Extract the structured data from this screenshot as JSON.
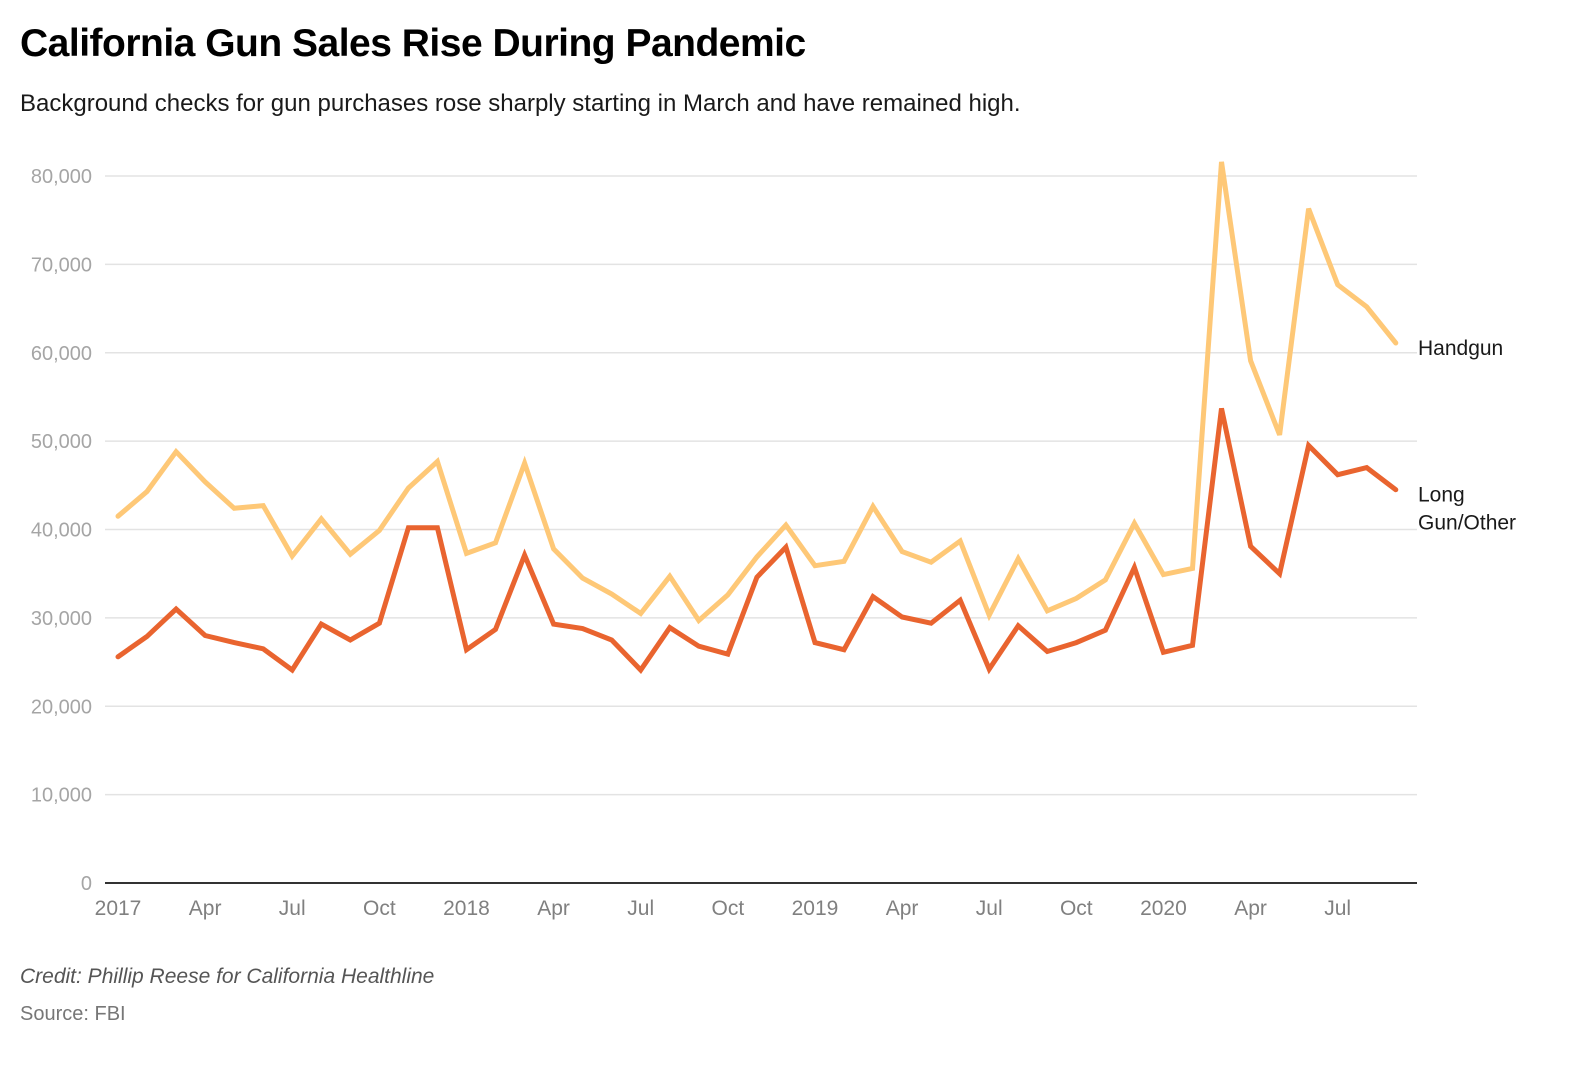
{
  "header": {
    "title": "California Gun Sales Rise During Pandemic",
    "subtitle": "Background checks for gun purchases rose sharply starting in March and have remained high."
  },
  "footer": {
    "credit": "Credit: Phillip Reese for California Healthline",
    "source": "Source: FBI"
  },
  "chart_data": {
    "type": "line",
    "title": "California Gun Sales Rise During Pandemic",
    "subtitle": "Background checks for gun purchases rose sharply starting in March and have remained high.",
    "xlabel": "",
    "ylabel": "",
    "ylim": [
      0,
      80000
    ],
    "yticks": [
      0,
      10000,
      20000,
      30000,
      40000,
      50000,
      60000,
      70000,
      80000
    ],
    "ytick_labels": [
      "0",
      "10,000",
      "20,000",
      "30,000",
      "40,000",
      "50,000",
      "60,000",
      "70,000",
      "80,000"
    ],
    "xticks": [
      {
        "index": 0,
        "label": "2017"
      },
      {
        "index": 3,
        "label": "Apr"
      },
      {
        "index": 6,
        "label": "Jul"
      },
      {
        "index": 9,
        "label": "Oct"
      },
      {
        "index": 12,
        "label": "2018"
      },
      {
        "index": 15,
        "label": "Apr"
      },
      {
        "index": 18,
        "label": "Jul"
      },
      {
        "index": 21,
        "label": "Oct"
      },
      {
        "index": 24,
        "label": "2019"
      },
      {
        "index": 27,
        "label": "Apr"
      },
      {
        "index": 30,
        "label": "Jul"
      },
      {
        "index": 33,
        "label": "Oct"
      },
      {
        "index": 36,
        "label": "2020"
      },
      {
        "index": 39,
        "label": "Apr"
      },
      {
        "index": 42,
        "label": "Jul"
      }
    ],
    "x": [
      "2017-01",
      "2017-02",
      "2017-03",
      "2017-04",
      "2017-05",
      "2017-06",
      "2017-07",
      "2017-08",
      "2017-09",
      "2017-10",
      "2017-11",
      "2017-12",
      "2018-01",
      "2018-02",
      "2018-03",
      "2018-04",
      "2018-05",
      "2018-06",
      "2018-07",
      "2018-08",
      "2018-09",
      "2018-10",
      "2018-11",
      "2018-12",
      "2019-01",
      "2019-02",
      "2019-03",
      "2019-04",
      "2019-05",
      "2019-06",
      "2019-07",
      "2019-08",
      "2019-09",
      "2019-10",
      "2019-11",
      "2019-12",
      "2020-01",
      "2020-02",
      "2020-03",
      "2020-04",
      "2020-05",
      "2020-06",
      "2020-07",
      "2020-08",
      "2020-09"
    ],
    "grid": true,
    "legend": "direct-labels-right",
    "series": [
      {
        "name": "Handgun",
        "color": "#fec877",
        "values": [
          41500,
          44300,
          48800,
          45400,
          42400,
          42700,
          37000,
          41200,
          37200,
          39900,
          44700,
          47700,
          37300,
          38500,
          47500,
          37800,
          34500,
          32700,
          30500,
          34700,
          29700,
          32600,
          36900,
          40500,
          35900,
          36400,
          42600,
          37500,
          36300,
          38700,
          30300,
          36700,
          30800,
          32200,
          34300,
          40700,
          34900,
          35600,
          81600,
          59100,
          50700,
          76300,
          67700,
          65200,
          61100
        ]
      },
      {
        "name": "Long Gun/Other",
        "color": "#e9642f",
        "values": [
          25600,
          27900,
          31000,
          28000,
          27200,
          26500,
          24100,
          29300,
          27500,
          29400,
          40200,
          40200,
          26400,
          28700,
          37100,
          29300,
          28800,
          27500,
          24100,
          28900,
          26800,
          25900,
          34600,
          38000,
          27200,
          26400,
          32400,
          30100,
          29400,
          32000,
          24200,
          29100,
          26200,
          27200,
          28600,
          35700,
          26100,
          26900,
          53700,
          38100,
          35000,
          49500,
          46200,
          47000,
          44500
        ]
      }
    ],
    "series_labels": [
      {
        "series": "Handgun",
        "lines": [
          "Handgun"
        ]
      },
      {
        "series": "Long Gun/Other",
        "lines": [
          "Long",
          "Gun/Other"
        ]
      }
    ]
  }
}
